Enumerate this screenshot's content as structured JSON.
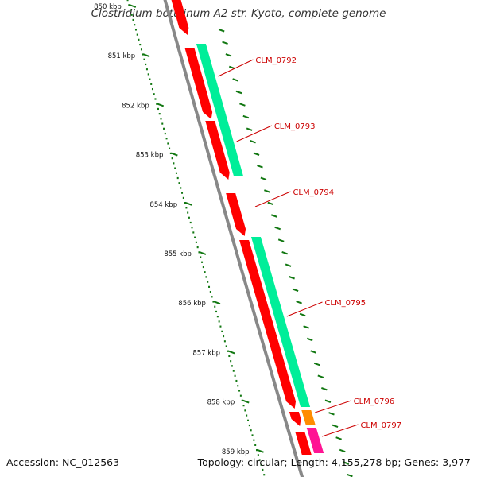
{
  "title": "Clostridium botulinum A2 str. Kyoto, complete genome",
  "footer": {
    "accession": "Accession: NC_012563",
    "summary": "Topology: circular; Length: 4,155,278 bp; Genes: 3,977"
  },
  "colors": {
    "backbone": "#888888",
    "cds": "#ff0000",
    "gene": "#00ee99",
    "orange_feature": "#ff8c00",
    "pink_feature": "#ff1493",
    "tick": "#117711",
    "label": "#cc0000"
  },
  "ruler": [
    {
      "kbp": 850,
      "label": "850 kbp"
    },
    {
      "kbp": 851,
      "label": "851 kbp"
    },
    {
      "kbp": 852,
      "label": "852 kbp"
    },
    {
      "kbp": 853,
      "label": "853 kbp"
    },
    {
      "kbp": 854,
      "label": "854 kbp"
    },
    {
      "kbp": 855,
      "label": "855 kbp"
    },
    {
      "kbp": 856,
      "label": "856 kbp"
    },
    {
      "kbp": 857,
      "label": "857 kbp"
    },
    {
      "kbp": 858,
      "label": "858 kbp"
    },
    {
      "kbp": 859,
      "label": "859 kbp"
    }
  ],
  "genes": [
    {
      "name": "CLM_0792"
    },
    {
      "name": "CLM_0793"
    },
    {
      "name": "CLM_0794"
    },
    {
      "name": "CLM_0795"
    },
    {
      "name": "CLM_0796"
    },
    {
      "name": "CLM_0797"
    }
  ]
}
